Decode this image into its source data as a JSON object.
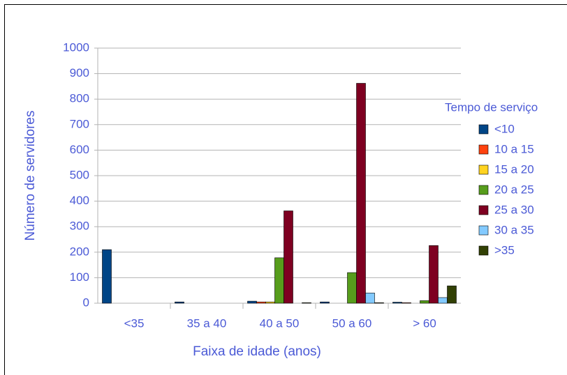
{
  "chart_data": {
    "type": "bar",
    "categories": [
      "<35",
      "35 a 40",
      "40 a 50",
      "50 a 60",
      "> 60"
    ],
    "series": [
      {
        "name": "<10",
        "color": "#004586",
        "values": [
          210,
          5,
          8,
          5,
          4
        ]
      },
      {
        "name": "10 a 15",
        "color": "#ff420e",
        "values": [
          0,
          0,
          5,
          0,
          2
        ]
      },
      {
        "name": "15 a 20",
        "color": "#ffd320",
        "values": [
          0,
          0,
          5,
          0,
          0
        ]
      },
      {
        "name": "20 a 25",
        "color": "#579d1c",
        "values": [
          0,
          0,
          178,
          120,
          10
        ]
      },
      {
        "name": "25 a 30",
        "color": "#7e0021",
        "values": [
          0,
          0,
          362,
          862,
          226
        ]
      },
      {
        "name": "30 a 35",
        "color": "#83caff",
        "values": [
          0,
          0,
          0,
          40,
          22
        ]
      },
      {
        "name": ">35",
        "color": "#314004",
        "values": [
          0,
          0,
          2,
          2,
          68
        ]
      }
    ],
    "xlabel": "Faixa de idade (anos)",
    "ylabel": "Número de servidores",
    "legend_title": "Tempo de serviço",
    "ylim": [
      0,
      1000
    ],
    "yticks": [
      0,
      100,
      200,
      300,
      400,
      500,
      600,
      700,
      800,
      900,
      1000
    ],
    "grid": true,
    "legend": "right"
  }
}
